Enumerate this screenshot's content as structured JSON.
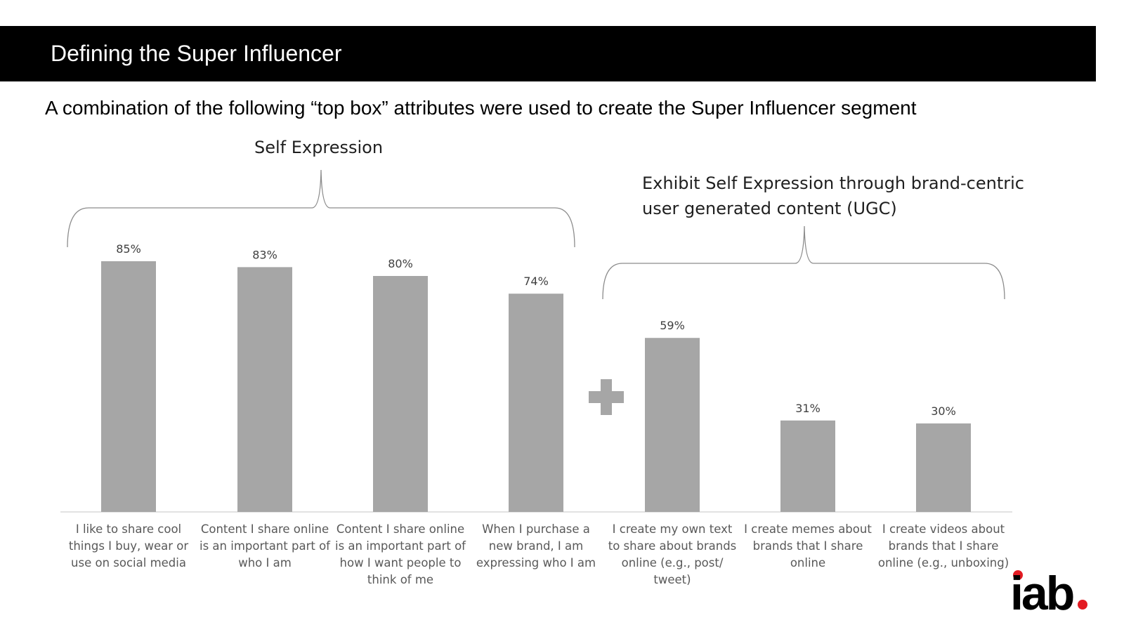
{
  "header": {
    "title": "Defining the Super Influencer"
  },
  "subtitle": "A combination of the following “top box” attributes were used to create the Super Influencer segment",
  "groups": [
    {
      "label": "Self Expression"
    },
    {
      "label_line1": "Exhibit Self Expression through brand-centric",
      "label_line2": "user generated content (UGC)"
    }
  ],
  "plus_icon": "plus-icon",
  "logo": {
    "text": "iab",
    "accent_color": "#e31b23"
  },
  "colors": {
    "bar": "#a6a6a6",
    "header_bg": "#000000"
  },
  "chart_data": {
    "type": "bar",
    "categories": [
      "I like to share cool things I buy, wear or use on social media",
      "Content I share online is an important part of who I am",
      "Content I share online is an important part of how I want people to think of me",
      "When I purchase a new brand, I am expressing who I am",
      "I create my own text to share about brands online (e.g., post/ tweet)",
      "I create memes about brands that I share online",
      "I create videos about brands that I share online (e.g., unboxing)"
    ],
    "values": [
      85,
      83,
      80,
      74,
      59,
      31,
      30
    ],
    "value_labels": [
      "85%",
      "83%",
      "80%",
      "74%",
      "59%",
      "31%",
      "30%"
    ],
    "ylim": [
      0,
      100
    ],
    "grid": false,
    "legend": "none"
  }
}
